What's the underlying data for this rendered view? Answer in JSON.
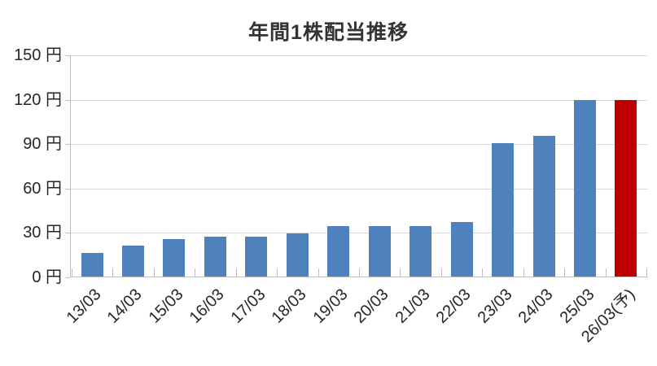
{
  "chart": {
    "title": "年間1株配当推移"
  },
  "chart_data": {
    "type": "bar",
    "title": "年間1株配当推移",
    "categories": [
      "13/03",
      "14/03",
      "15/03",
      "16/03",
      "17/03",
      "18/03",
      "19/03",
      "20/03",
      "21/03",
      "22/03",
      "23/03",
      "24/03",
      "25/03",
      "26/03(予)"
    ],
    "values": [
      16,
      21,
      25,
      27,
      27,
      29,
      34,
      34,
      34,
      37,
      90,
      95,
      119,
      119
    ],
    "unit": "円",
    "xlabel": "",
    "ylabel": "",
    "ylim": [
      0,
      150
    ],
    "ytick_interval": 30,
    "y_tick_labels_top_down": [
      "150 円",
      "120 円",
      "90 円",
      "60 円",
      "30 円",
      "0 円"
    ],
    "grid": true,
    "legend_position": "none",
    "x_label_rotation_deg": -45,
    "forecast_index": 13,
    "colors": {
      "bar_default": "#4F81BD",
      "bar_forecast": "#C00000",
      "gridline": "#D9D9D9",
      "axis_line": "#BFBFBF",
      "title_text": "#333333",
      "tick_label_text": "#262626"
    }
  }
}
